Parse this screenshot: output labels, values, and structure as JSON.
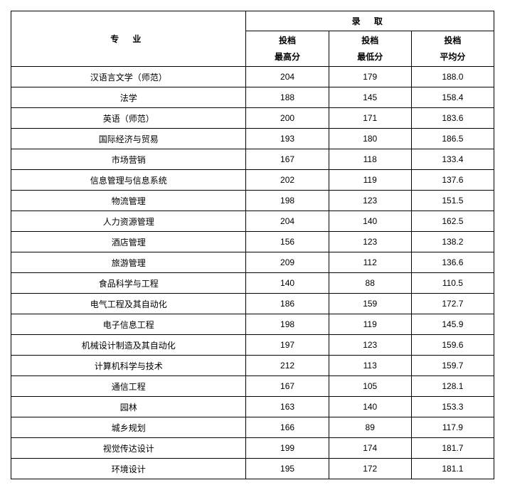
{
  "header": {
    "major": "专 业",
    "admit": "录 取",
    "sub1_line1": "投档",
    "sub1_line2": "最高分",
    "sub2_line1": "投档",
    "sub2_line2": "最低分",
    "sub3_line1": "投档",
    "sub3_line2": "平均分"
  },
  "rows": [
    {
      "major": "汉语言文学（师范）",
      "high": "204",
      "low": "179",
      "avg": "188.0"
    },
    {
      "major": "法学",
      "high": "188",
      "low": "145",
      "avg": "158.4"
    },
    {
      "major": "英语（师范）",
      "high": "200",
      "low": "171",
      "avg": "183.6"
    },
    {
      "major": "国际经济与贸易",
      "high": "193",
      "low": "180",
      "avg": "186.5"
    },
    {
      "major": "市场营销",
      "high": "167",
      "low": "118",
      "avg": "133.4"
    },
    {
      "major": "信息管理与信息系统",
      "high": "202",
      "low": "119",
      "avg": "137.6"
    },
    {
      "major": "物流管理",
      "high": "198",
      "low": "123",
      "avg": "151.5"
    },
    {
      "major": "人力资源管理",
      "high": "204",
      "low": "140",
      "avg": "162.5"
    },
    {
      "major": "酒店管理",
      "high": "156",
      "low": "123",
      "avg": "138.2"
    },
    {
      "major": "旅游管理",
      "high": "209",
      "low": "112",
      "avg": "136.6"
    },
    {
      "major": "食品科学与工程",
      "high": "140",
      "low": "88",
      "avg": "110.5"
    },
    {
      "major": "电气工程及其自动化",
      "high": "186",
      "low": "159",
      "avg": "172.7"
    },
    {
      "major": "电子信息工程",
      "high": "198",
      "low": "119",
      "avg": "145.9"
    },
    {
      "major": "机械设计制造及其自动化",
      "high": "197",
      "low": "123",
      "avg": "159.6"
    },
    {
      "major": "计算机科学与技术",
      "high": "212",
      "low": "113",
      "avg": "159.7"
    },
    {
      "major": "通信工程",
      "high": "167",
      "low": "105",
      "avg": "128.1"
    },
    {
      "major": "园林",
      "high": "163",
      "low": "140",
      "avg": "153.3"
    },
    {
      "major": "城乡规划",
      "high": "166",
      "low": "89",
      "avg": "117.9"
    },
    {
      "major": "视觉传达设计",
      "high": "199",
      "low": "174",
      "avg": "181.7"
    },
    {
      "major": "环境设计",
      "high": "195",
      "low": "172",
      "avg": "181.1"
    }
  ]
}
